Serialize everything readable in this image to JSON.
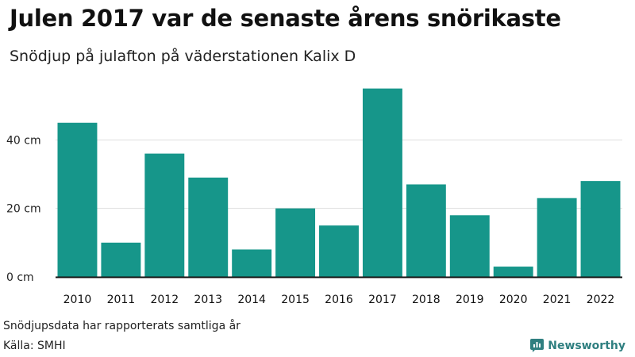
{
  "title": "Julen 2017 var de senaste årens snörikaste",
  "subtitle": "Snödjup på julafton på väderstationen Kalix D",
  "note": "Snödjupsdata har rapporterats samtliga år",
  "source": "Källa: SMHI",
  "brand": {
    "name": "Newsworthy",
    "icon": "newsworthy-logo-icon",
    "color": "#2f7f80"
  },
  "colors": {
    "bar": "#16968a",
    "grid": "#dddddd",
    "axis": "#111111"
  },
  "chart_data": {
    "type": "bar",
    "categories": [
      "2010",
      "2011",
      "2012",
      "2013",
      "2014",
      "2015",
      "2016",
      "2017",
      "2018",
      "2019",
      "2020",
      "2021",
      "2022"
    ],
    "values": [
      45,
      10,
      36,
      29,
      8,
      20,
      15,
      55,
      27,
      18,
      3,
      23,
      28
    ],
    "yticks": [
      0,
      20,
      40
    ],
    "ytick_labels": [
      "0 cm",
      "20 cm",
      "40 cm"
    ],
    "ylim": [
      0,
      60
    ],
    "grid": true,
    "legend": false,
    "xlabel": "",
    "ylabel": ""
  }
}
